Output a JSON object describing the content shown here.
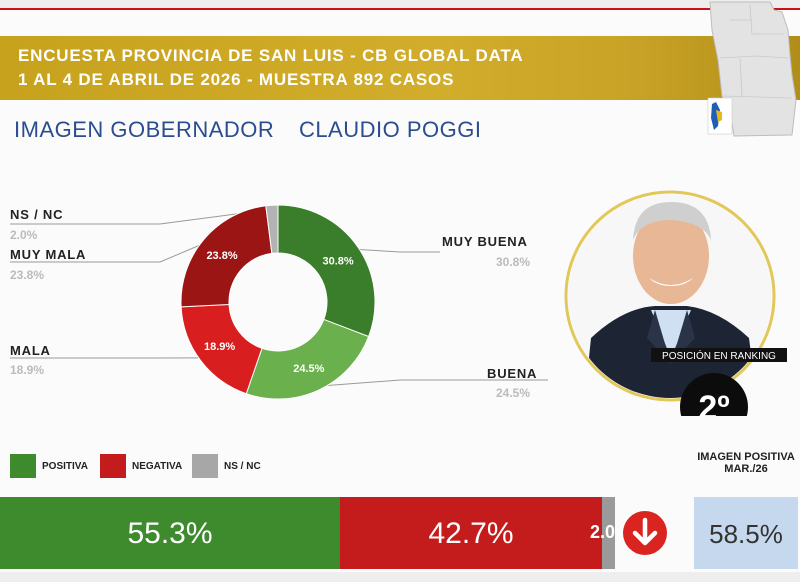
{
  "header": {
    "line1": "ENCUESTA PROVINCIA DE SAN LUIS - CB GLOBAL DATA",
    "line2": "1 AL 4 DE ABRIL DE 2026 - MUESTRA 892 CASOS"
  },
  "title": {
    "part1": "IMAGEN GOBERNADOR",
    "part2": "CLAUDIO POGGI"
  },
  "chart_data": {
    "type": "pie",
    "subtype": "donut",
    "categories": [
      "MUY BUENA",
      "BUENA",
      "MALA",
      "MUY MALA",
      "NS / NC"
    ],
    "values": [
      30.8,
      24.5,
      18.9,
      23.8,
      2.0
    ],
    "value_labels": [
      "30.8%",
      "24.5%",
      "18.9%",
      "23.8%",
      "2.0%"
    ],
    "colors": [
      "#3a7d2a",
      "#6ab04c",
      "#d81e1e",
      "#9b1515",
      "#b3b3b3"
    ]
  },
  "labels": {
    "muy_buena": "MUY BUENA",
    "muy_buena_val": "30.8%",
    "buena": "BUENA",
    "buena_val": "24.5%",
    "mala": "MALA",
    "mala_val": "18.9%",
    "muy_mala": "MUY MALA",
    "muy_mala_val": "23.8%",
    "nsnc": "NS / NC",
    "nsnc_val": "2.0%"
  },
  "ranking": {
    "label": "POSICIÓN EN RANKING",
    "value": "2º"
  },
  "legend": {
    "positiva": "POSITIVA",
    "negativa": "NEGATIVA",
    "nsnc": "NS / NC",
    "colors": {
      "positiva": "#3e8b2e",
      "negativa": "#c41c1c",
      "nsnc": "#a7a7a7"
    }
  },
  "summary": {
    "positiva": "55.3%",
    "negativa": "42.7%",
    "nsnc": "2.0",
    "trend": "down-arrow-icon",
    "previous_label": "IMAGEN POSITIVA MAR./26",
    "previous_value": "58.5%"
  }
}
